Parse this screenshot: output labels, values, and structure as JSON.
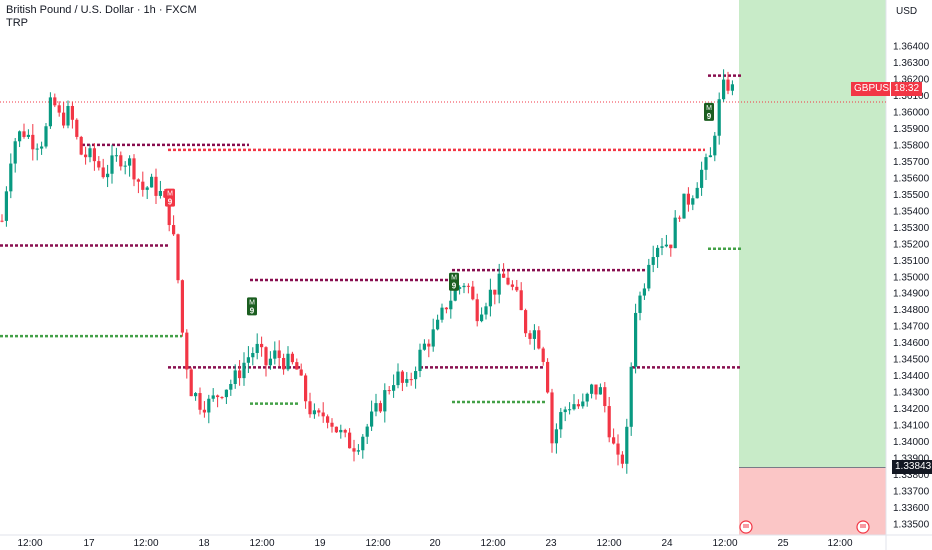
{
  "header": {
    "title": "British Pound / U.S. Dollar · 1h · FXCM",
    "indicator": "TRP"
  },
  "price_scale": {
    "currency": "USD",
    "ticks": [
      "1.36400",
      "1.36300",
      "1.36200",
      "1.36100",
      "1.36000",
      "1.35900",
      "1.35800",
      "1.35700",
      "1.35600",
      "1.35500",
      "1.35400",
      "1.35300",
      "1.35200",
      "1.35100",
      "1.35000",
      "1.34900",
      "1.34800",
      "1.34700",
      "1.34600",
      "1.34500",
      "1.34400",
      "1.34300",
      "1.34200",
      "1.34100",
      "1.34000",
      "1.33900",
      "1.33800",
      "1.33700",
      "1.33600",
      "1.33500"
    ],
    "symbol_tag": "GBPUSD",
    "countdown": "18:32",
    "current_price": 1.3606,
    "stop_label": "1.33843"
  },
  "time_axis": {
    "labels": [
      "12:00",
      "17",
      "12:00",
      "18",
      "12:00",
      "19",
      "12:00",
      "20",
      "12:00",
      "23",
      "12:00",
      "24",
      "12:00",
      "25",
      "12:00"
    ]
  },
  "markers": [
    {
      "text": "9",
      "type": "sell"
    },
    {
      "text": "9",
      "type": "buy"
    },
    {
      "text": "9",
      "type": "buy"
    },
    {
      "text": "9",
      "type": "buy"
    }
  ],
  "colors": {
    "up": "#26a69a",
    "up_candle": "#089981",
    "down": "#f23645",
    "resistance": "#880e4f",
    "support": "#43a047",
    "profit_zone": "#c8ebc8",
    "loss_zone": "#fbc6c6",
    "tag_red": "#f23645",
    "tag_dark": "#131722"
  },
  "icons": [
    "earnings-icon",
    "earnings-icon"
  ]
}
